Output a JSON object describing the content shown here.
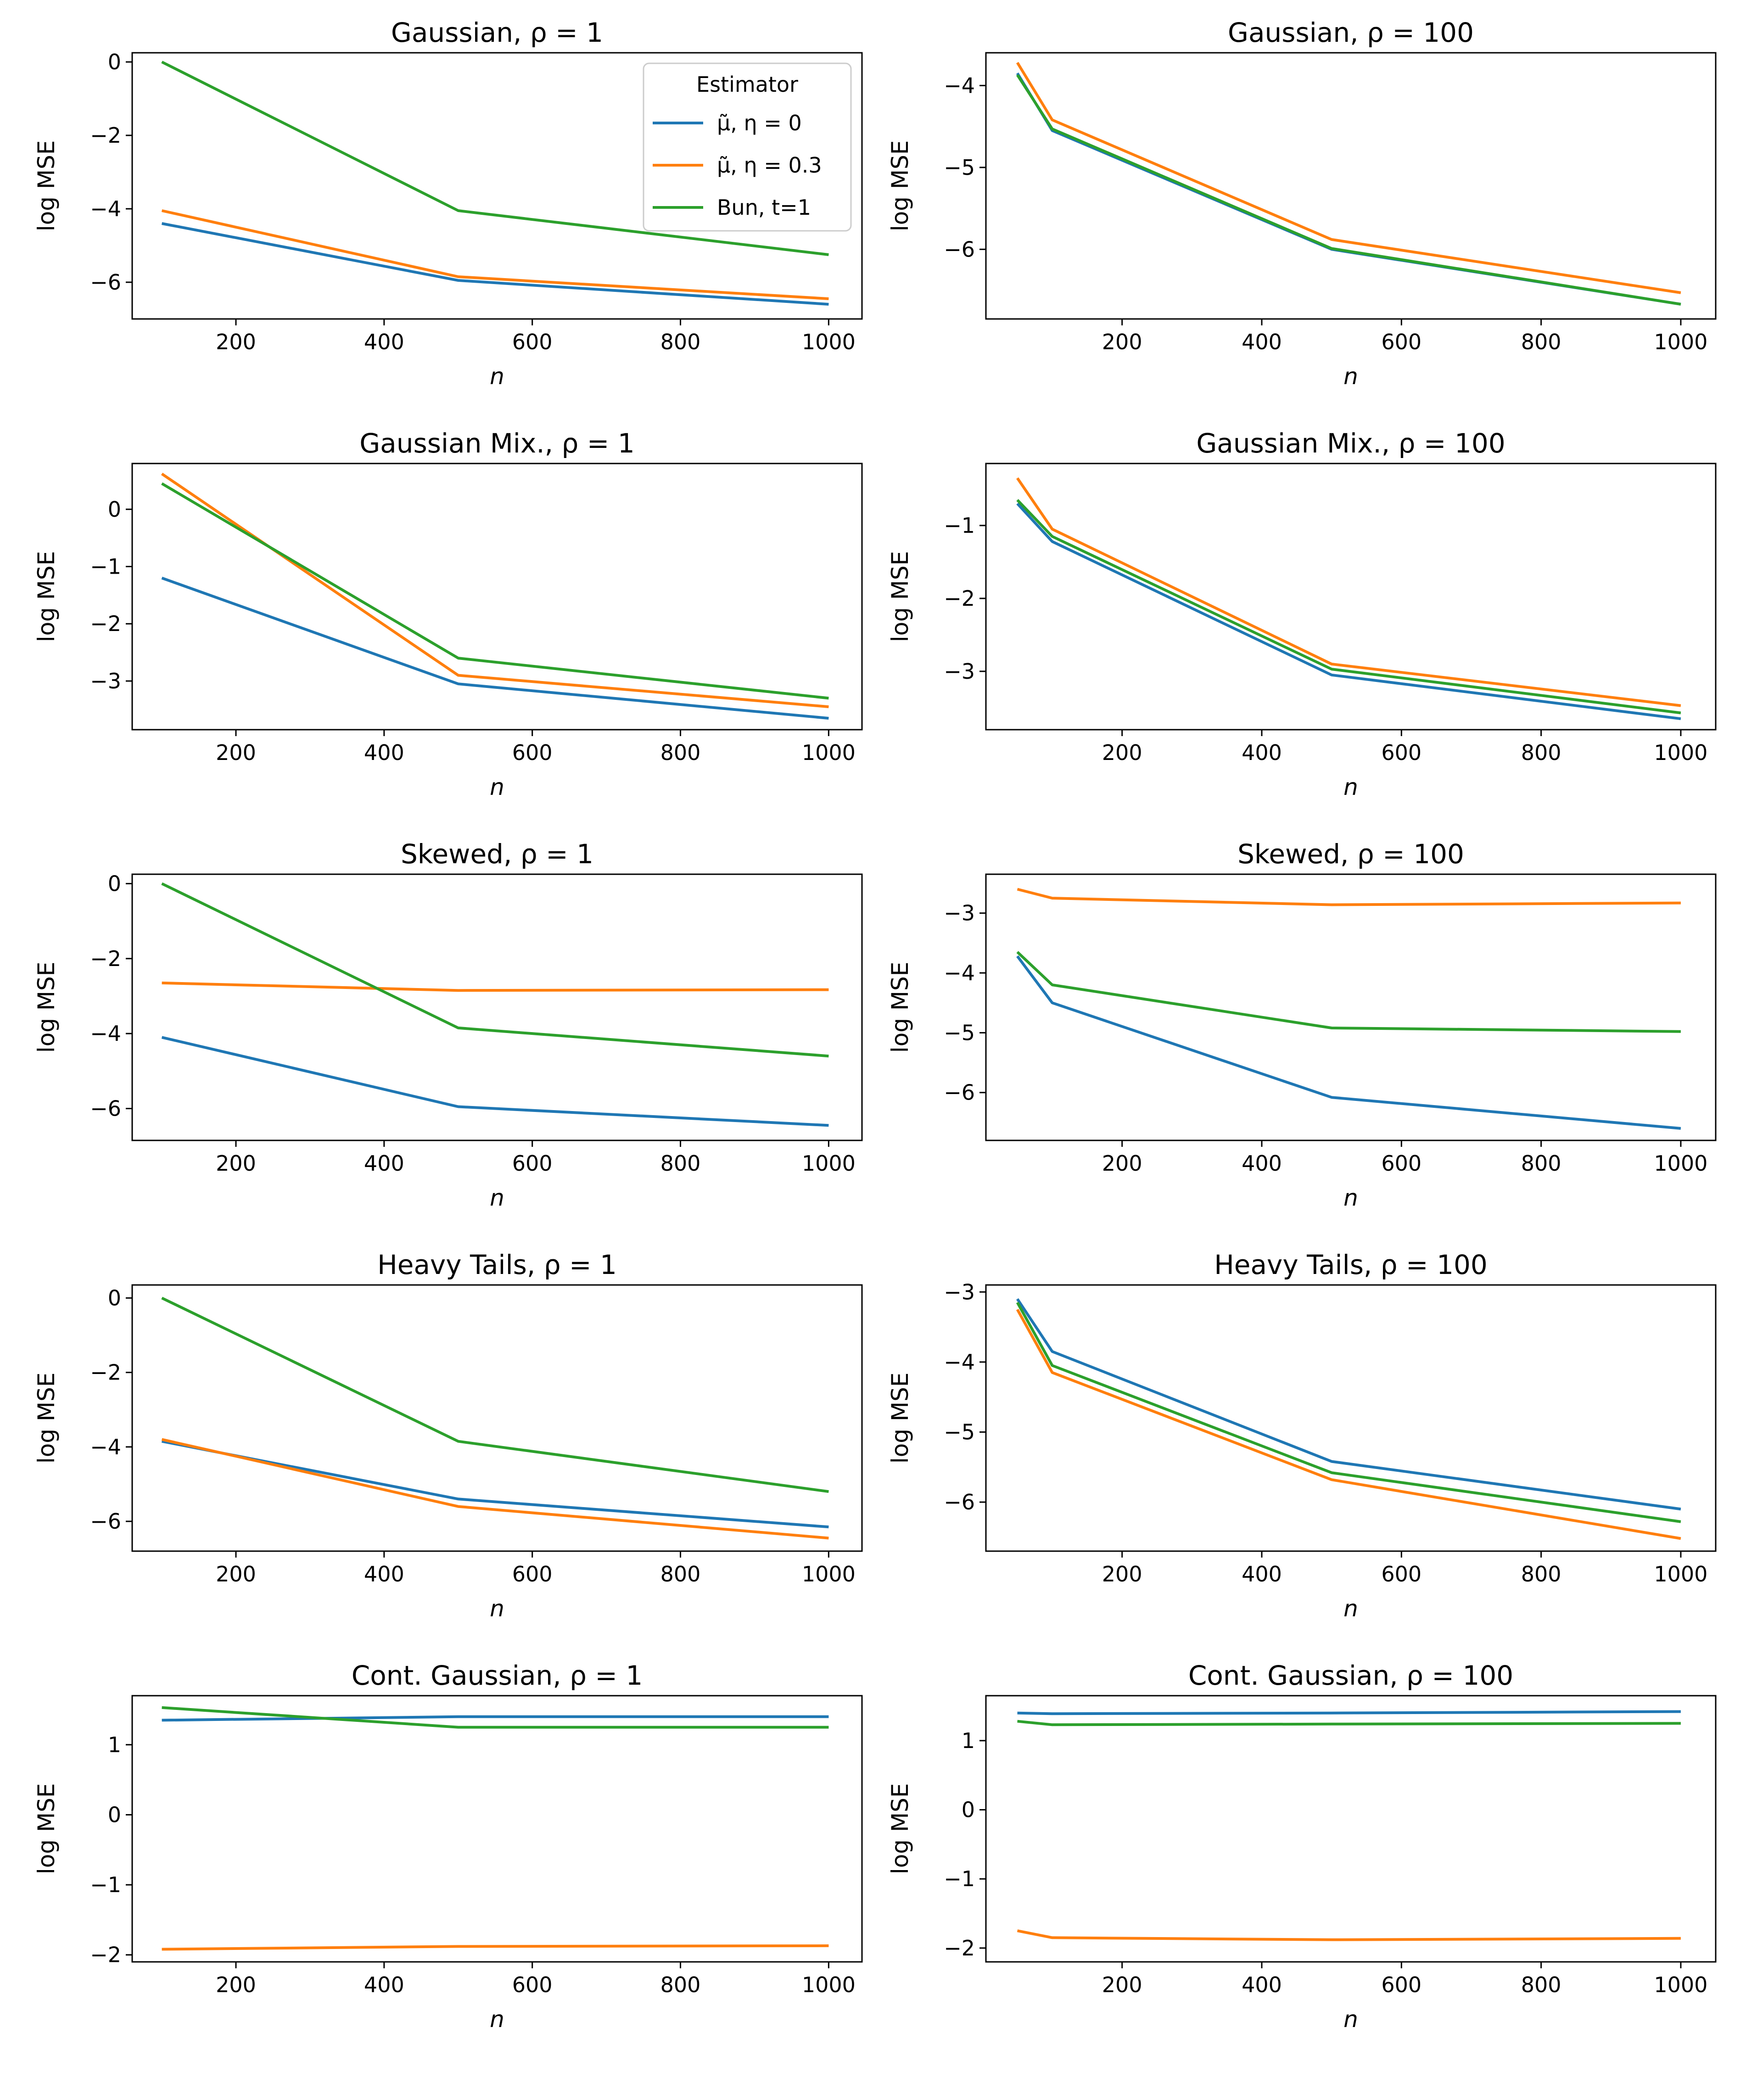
{
  "colors": {
    "series": [
      "#1f77b4",
      "#ff7f0e",
      "#2ca02c"
    ]
  },
  "legend": {
    "title": "Estimator",
    "entries": [
      "μ̃,  η = 0",
      "μ̃,  η = 0.3",
      "Bun, t=1"
    ]
  },
  "chart_data": [
    {
      "type": "line",
      "title": "Gaussian, ρ = 1",
      "xlabel": "n",
      "ylabel": "log MSE",
      "xlim": [
        60,
        1045
      ],
      "ylim": [
        -7,
        0.25
      ],
      "xticks": [
        200,
        400,
        600,
        800,
        1000
      ],
      "yticks": [
        0,
        -2,
        -4,
        -6
      ],
      "series": [
        {
          "name": "μ̃, η = 0",
          "x": [
            100,
            500,
            1000
          ],
          "y": [
            -4.4,
            -5.95,
            -6.6
          ]
        },
        {
          "name": "μ̃, η = 0.3",
          "x": [
            100,
            500,
            1000
          ],
          "y": [
            -4.05,
            -5.85,
            -6.45
          ]
        },
        {
          "name": "Bun, t=1",
          "x": [
            100,
            500,
            1000
          ],
          "y": [
            0.0,
            -4.05,
            -5.25
          ]
        }
      ]
    },
    {
      "type": "line",
      "title": "Gaussian, ρ = 100",
      "xlabel": "n",
      "ylabel": "log MSE",
      "xlim": [
        5,
        1050
      ],
      "ylim": [
        -6.85,
        -3.6
      ],
      "xticks": [
        200,
        400,
        600,
        800,
        1000
      ],
      "yticks": [
        -4,
        -5,
        -6
      ],
      "series": [
        {
          "name": "μ̃, η = 0",
          "x": [
            50,
            100,
            500,
            1000
          ],
          "y": [
            -3.85,
            -4.55,
            -6.0,
            -6.67
          ]
        },
        {
          "name": "μ̃, η = 0.3",
          "x": [
            50,
            100,
            500,
            1000
          ],
          "y": [
            -3.72,
            -4.42,
            -5.88,
            -6.53
          ]
        },
        {
          "name": "Bun, t=1",
          "x": [
            50,
            100,
            500,
            1000
          ],
          "y": [
            -3.87,
            -4.53,
            -5.99,
            -6.67
          ]
        }
      ]
    },
    {
      "type": "line",
      "title": "Gaussian Mix., ρ = 1",
      "xlabel": "n",
      "ylabel": "log MSE",
      "xlim": [
        60,
        1045
      ],
      "ylim": [
        -3.85,
        0.8
      ],
      "xticks": [
        200,
        400,
        600,
        800,
        1000
      ],
      "yticks": [
        0,
        -1,
        -2,
        -3
      ],
      "series": [
        {
          "name": "μ̃, η = 0",
          "x": [
            100,
            500,
            1000
          ],
          "y": [
            -1.2,
            -3.05,
            -3.65
          ]
        },
        {
          "name": "μ̃, η = 0.3",
          "x": [
            100,
            500,
            1000
          ],
          "y": [
            0.62,
            -2.9,
            -3.45
          ]
        },
        {
          "name": "Bun, t=1",
          "x": [
            100,
            500,
            1000
          ],
          "y": [
            0.45,
            -2.6,
            -3.3
          ]
        }
      ]
    },
    {
      "type": "line",
      "title": "Gaussian Mix., ρ = 100",
      "xlabel": "n",
      "ylabel": "log MSE",
      "xlim": [
        5,
        1050
      ],
      "ylim": [
        -3.8,
        -0.15
      ],
      "xticks": [
        200,
        400,
        600,
        800,
        1000
      ],
      "yticks": [
        -1,
        -2,
        -3
      ],
      "series": [
        {
          "name": "μ̃, η = 0",
          "x": [
            50,
            100,
            500,
            1000
          ],
          "y": [
            -0.7,
            -1.22,
            -3.05,
            -3.65
          ]
        },
        {
          "name": "μ̃, η = 0.3",
          "x": [
            50,
            100,
            500,
            1000
          ],
          "y": [
            -0.35,
            -1.05,
            -2.9,
            -3.47
          ]
        },
        {
          "name": "Bun, t=1",
          "x": [
            50,
            100,
            500,
            1000
          ],
          "y": [
            -0.65,
            -1.15,
            -2.97,
            -3.57
          ]
        }
      ]
    },
    {
      "type": "line",
      "title": "Skewed, ρ = 1",
      "xlabel": "n",
      "ylabel": "log MSE",
      "xlim": [
        60,
        1045
      ],
      "ylim": [
        -6.85,
        0.25
      ],
      "xticks": [
        200,
        400,
        600,
        800,
        1000
      ],
      "yticks": [
        0,
        -2,
        -4,
        -6
      ],
      "series": [
        {
          "name": "μ̃, η = 0",
          "x": [
            100,
            500,
            1000
          ],
          "y": [
            -4.1,
            -5.95,
            -6.45
          ]
        },
        {
          "name": "μ̃, η = 0.3",
          "x": [
            100,
            500,
            1000
          ],
          "y": [
            -2.65,
            -2.85,
            -2.83
          ]
        },
        {
          "name": "Bun, t=1",
          "x": [
            100,
            500,
            1000
          ],
          "y": [
            0.0,
            -3.85,
            -4.6
          ]
        }
      ]
    },
    {
      "type": "line",
      "title": "Skewed, ρ = 100",
      "xlabel": "n",
      "ylabel": "log MSE",
      "xlim": [
        5,
        1050
      ],
      "ylim": [
        -6.8,
        -2.35
      ],
      "xticks": [
        200,
        400,
        600,
        800,
        1000
      ],
      "yticks": [
        -3,
        -4,
        -5,
        -6
      ],
      "series": [
        {
          "name": "μ̃, η = 0",
          "x": [
            50,
            100,
            500,
            1000
          ],
          "y": [
            -3.72,
            -4.5,
            -6.08,
            -6.6
          ]
        },
        {
          "name": "μ̃, η = 0.3",
          "x": [
            50,
            100,
            500,
            1000
          ],
          "y": [
            -2.6,
            -2.75,
            -2.86,
            -2.83
          ]
        },
        {
          "name": "Bun, t=1",
          "x": [
            50,
            100,
            500,
            1000
          ],
          "y": [
            -3.65,
            -4.2,
            -4.92,
            -4.98
          ]
        }
      ]
    },
    {
      "type": "line",
      "title": "Heavy Tails, ρ = 1",
      "xlabel": "n",
      "ylabel": "log MSE",
      "xlim": [
        60,
        1045
      ],
      "ylim": [
        -6.8,
        0.35
      ],
      "xticks": [
        200,
        400,
        600,
        800,
        1000
      ],
      "yticks": [
        0,
        -2,
        -4,
        -6
      ],
      "series": [
        {
          "name": "μ̃, η = 0",
          "x": [
            100,
            500,
            1000
          ],
          "y": [
            -3.85,
            -5.4,
            -6.15
          ]
        },
        {
          "name": "μ̃, η = 0.3",
          "x": [
            100,
            500,
            1000
          ],
          "y": [
            -3.8,
            -5.6,
            -6.45
          ]
        },
        {
          "name": "Bun, t=1",
          "x": [
            100,
            500,
            1000
          ],
          "y": [
            0.0,
            -3.85,
            -5.2
          ]
        }
      ]
    },
    {
      "type": "line",
      "title": "Heavy Tails, ρ = 100",
      "xlabel": "n",
      "ylabel": "log MSE",
      "xlim": [
        5,
        1050
      ],
      "ylim": [
        -6.7,
        -2.9
      ],
      "xticks": [
        200,
        400,
        600,
        800,
        1000
      ],
      "yticks": [
        -3,
        -4,
        -5,
        -6
      ],
      "series": [
        {
          "name": "μ̃, η = 0",
          "x": [
            50,
            100,
            500,
            1000
          ],
          "y": [
            -3.1,
            -3.85,
            -5.42,
            -6.1
          ]
        },
        {
          "name": "μ̃, η = 0.3",
          "x": [
            50,
            100,
            500,
            1000
          ],
          "y": [
            -3.25,
            -4.15,
            -5.68,
            -6.52
          ]
        },
        {
          "name": "Bun, t=1",
          "x": [
            50,
            100,
            500,
            1000
          ],
          "y": [
            -3.15,
            -4.05,
            -5.58,
            -6.28
          ]
        }
      ]
    },
    {
      "type": "line",
      "title": "Cont. Gaussian, ρ = 1",
      "xlabel": "n",
      "ylabel": "log MSE",
      "xlim": [
        60,
        1045
      ],
      "ylim": [
        -2.1,
        1.7
      ],
      "xticks": [
        200,
        400,
        600,
        800,
        1000
      ],
      "yticks": [
        1,
        0,
        -1,
        -2
      ],
      "series": [
        {
          "name": "μ̃, η = 0",
          "x": [
            100,
            500,
            1000
          ],
          "y": [
            1.35,
            1.4,
            1.4
          ]
        },
        {
          "name": "μ̃, η = 0.3",
          "x": [
            100,
            500,
            1000
          ],
          "y": [
            -1.92,
            -1.88,
            -1.87
          ]
        },
        {
          "name": "Bun, t=1",
          "x": [
            100,
            500,
            1000
          ],
          "y": [
            1.53,
            1.25,
            1.25
          ]
        }
      ]
    },
    {
      "type": "line",
      "title": "Cont. Gaussian, ρ = 100",
      "xlabel": "n",
      "ylabel": "log MSE",
      "xlim": [
        5,
        1050
      ],
      "ylim": [
        -2.2,
        1.65
      ],
      "xticks": [
        200,
        400,
        600,
        800,
        1000
      ],
      "yticks": [
        1,
        0,
        -1,
        -2
      ],
      "series": [
        {
          "name": "μ̃, η = 0",
          "x": [
            50,
            100,
            500,
            1000
          ],
          "y": [
            1.4,
            1.39,
            1.4,
            1.42
          ]
        },
        {
          "name": "μ̃, η = 0.3",
          "x": [
            50,
            100,
            500,
            1000
          ],
          "y": [
            -1.75,
            -1.85,
            -1.88,
            -1.86
          ]
        },
        {
          "name": "Bun, t=1",
          "x": [
            50,
            100,
            500,
            1000
          ],
          "y": [
            1.28,
            1.23,
            1.24,
            1.25
          ]
        }
      ]
    }
  ]
}
